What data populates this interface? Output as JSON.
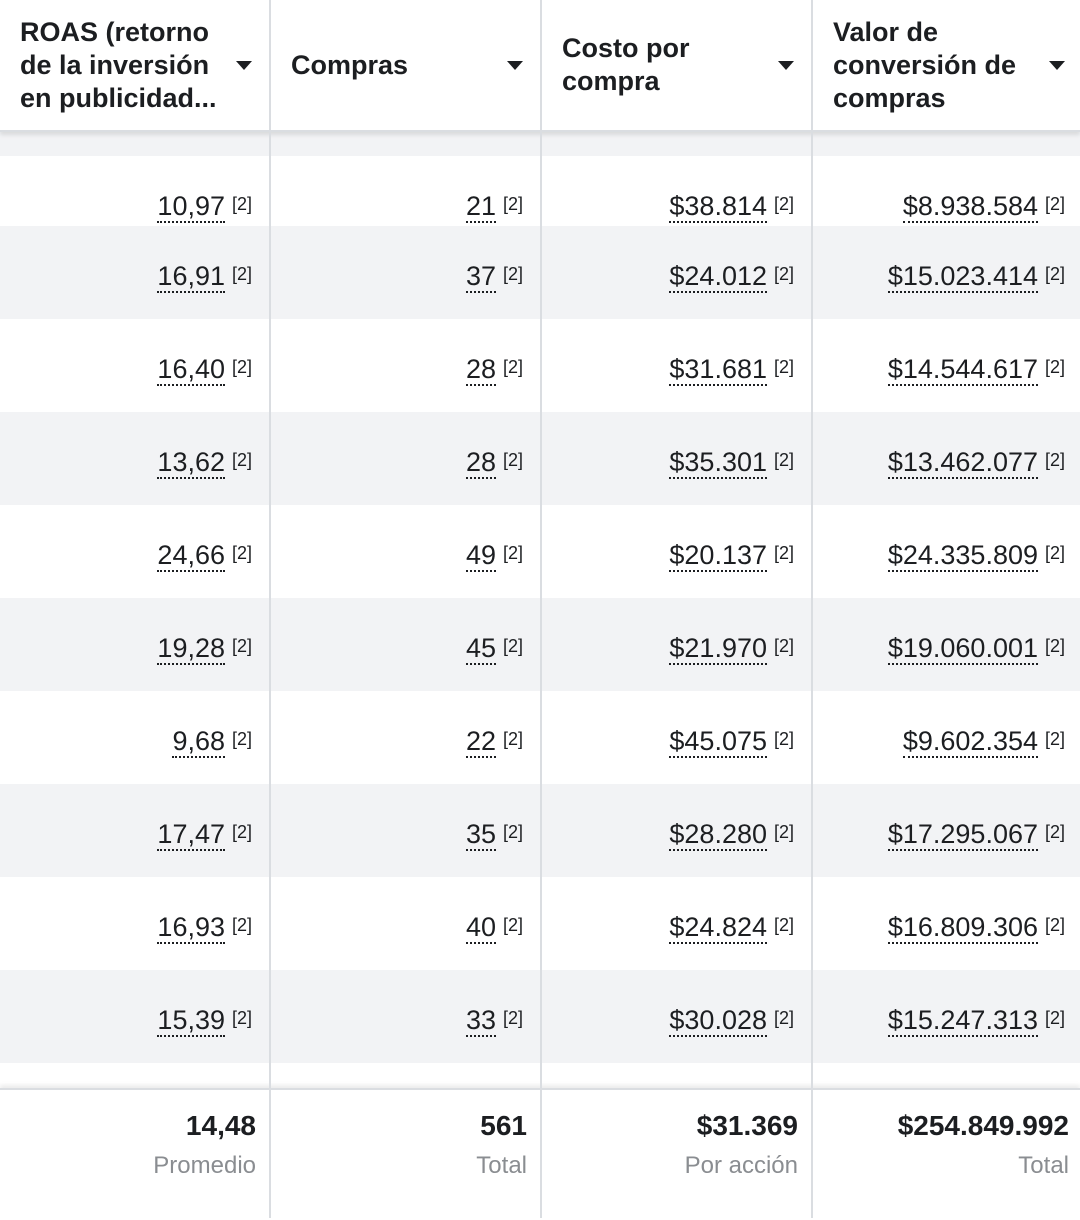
{
  "columns": [
    {
      "label": "ROAS (retorno\nde la inversión\nen publicidad..."
    },
    {
      "label": "Compras"
    },
    {
      "label": "Costo por\ncompra"
    },
    {
      "label": "Valor de\nconversión de\ncompras"
    }
  ],
  "note_marker": "[2]",
  "rows": [
    [
      "10,97",
      "21",
      "$38.814",
      "$8.938.584"
    ],
    [
      "16,91",
      "37",
      "$24.012",
      "$15.023.414"
    ],
    [
      "16,40",
      "28",
      "$31.681",
      "$14.544.617"
    ],
    [
      "13,62",
      "28",
      "$35.301",
      "$13.462.077"
    ],
    [
      "24,66",
      "49",
      "$20.137",
      "$24.335.809"
    ],
    [
      "19,28",
      "45",
      "$21.970",
      "$19.060.001"
    ],
    [
      "9,68",
      "22",
      "$45.075",
      "$9.602.354"
    ],
    [
      "17,47",
      "35",
      "$28.280",
      "$17.295.067"
    ],
    [
      "16,93",
      "40",
      "$24.824",
      "$16.809.306"
    ],
    [
      "15,39",
      "33",
      "$30.028",
      "$15.247.313"
    ]
  ],
  "footer": [
    {
      "value": "14,48",
      "caption": "Promedio"
    },
    {
      "value": "561",
      "caption": "Total"
    },
    {
      "value": "$31.369",
      "caption": "Por acción"
    },
    {
      "value": "$254.849.992",
      "caption": "Total"
    }
  ]
}
